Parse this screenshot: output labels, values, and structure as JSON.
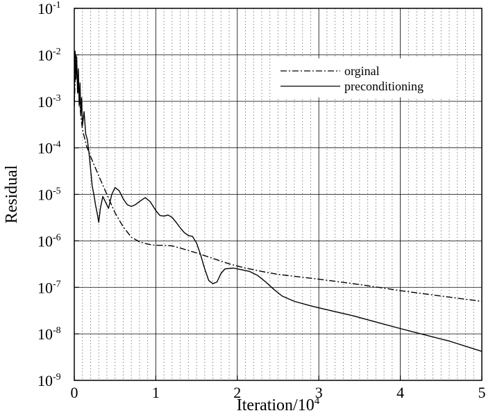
{
  "chart_data": {
    "type": "line",
    "xlabel": "Iteration/10",
    "xlabel_sup": "4",
    "ylabel": "Residual",
    "xlim": [
      0,
      5
    ],
    "ylim": [
      1e-09,
      0.1
    ],
    "y_scale": "log",
    "grid": true,
    "minor_x_grid": "dotted",
    "legend_position": "top-right",
    "x_ticks": [
      {
        "value": 0,
        "label": "0"
      },
      {
        "value": 1,
        "label": "1"
      },
      {
        "value": 2,
        "label": "2"
      },
      {
        "value": 3,
        "label": "3"
      },
      {
        "value": 4,
        "label": "4"
      },
      {
        "value": 5,
        "label": "5"
      }
    ],
    "y_ticks": [
      {
        "value": 0.1,
        "base": "10",
        "exp": "-1"
      },
      {
        "value": 0.01,
        "base": "10",
        "exp": "-2"
      },
      {
        "value": 0.001,
        "base": "10",
        "exp": "-3"
      },
      {
        "value": 0.0001,
        "base": "10",
        "exp": "-4"
      },
      {
        "value": 1e-05,
        "base": "10",
        "exp": "-5"
      },
      {
        "value": 1e-06,
        "base": "10",
        "exp": "-6"
      },
      {
        "value": 1e-07,
        "base": "10",
        "exp": "-7"
      },
      {
        "value": 1e-08,
        "base": "10",
        "exp": "-8"
      },
      {
        "value": 1e-09,
        "base": "10",
        "exp": "-9"
      }
    ],
    "series": [
      {
        "name": "orginal",
        "style": "dash-dot",
        "color": "#000000",
        "points": [
          [
            0,
            0.0008
          ],
          [
            0.02,
            0.01
          ],
          [
            0.04,
            0.003
          ],
          [
            0.06,
            0.0012
          ],
          [
            0.08,
            0.0005
          ],
          [
            0.1,
            0.00025
          ],
          [
            0.15,
            0.00011
          ],
          [
            0.2,
            6.5e-05
          ],
          [
            0.3,
            2.5e-05
          ],
          [
            0.4,
            1e-05
          ],
          [
            0.5,
            4e-06
          ],
          [
            0.6,
            2e-06
          ],
          [
            0.7,
            1.2e-06
          ],
          [
            0.8,
            9.5e-07
          ],
          [
            0.9,
            8.5e-07
          ],
          [
            1.0,
            8e-07
          ],
          [
            1.1,
            8e-07
          ],
          [
            1.2,
            7.8e-07
          ],
          [
            1.3,
            7e-07
          ],
          [
            1.4,
            6.2e-07
          ],
          [
            1.5,
            5.5e-07
          ],
          [
            1.7,
            4.2e-07
          ],
          [
            1.9,
            3.2e-07
          ],
          [
            2.1,
            2.6e-07
          ],
          [
            2.3,
            2.2e-07
          ],
          [
            2.5,
            1.9e-07
          ],
          [
            3.0,
            1.5e-07
          ],
          [
            3.5,
            1.15e-07
          ],
          [
            4.0,
            8.5e-08
          ],
          [
            4.5,
            6.5e-08
          ],
          [
            5.0,
            5e-08
          ]
        ]
      },
      {
        "name": "preconditioning",
        "style": "solid",
        "color": "#000000",
        "points": [
          [
            0,
            0.001
          ],
          [
            0.01,
            0.012
          ],
          [
            0.02,
            0.003
          ],
          [
            0.03,
            0.009
          ],
          [
            0.04,
            0.0015
          ],
          [
            0.05,
            0.005
          ],
          [
            0.06,
            0.0008
          ],
          [
            0.07,
            0.0025
          ],
          [
            0.08,
            0.0005
          ],
          [
            0.09,
            0.0012
          ],
          [
            0.1,
            0.0003
          ],
          [
            0.12,
            0.0006
          ],
          [
            0.14,
            0.0002
          ],
          [
            0.16,
            0.00015
          ],
          [
            0.18,
            8e-05
          ],
          [
            0.2,
            3.5e-05
          ],
          [
            0.22,
            1.5e-05
          ],
          [
            0.24,
            1e-05
          ],
          [
            0.26,
            6e-06
          ],
          [
            0.28,
            4e-06
          ],
          [
            0.3,
            2.5e-06
          ],
          [
            0.32,
            5e-06
          ],
          [
            0.35,
            9e-06
          ],
          [
            0.38,
            7e-06
          ],
          [
            0.42,
            5e-06
          ],
          [
            0.46,
            1e-05
          ],
          [
            0.5,
            1.4e-05
          ],
          [
            0.55,
            1.2e-05
          ],
          [
            0.6,
            8e-06
          ],
          [
            0.65,
            6e-06
          ],
          [
            0.7,
            5.5e-06
          ],
          [
            0.75,
            6e-06
          ],
          [
            0.8,
            7e-06
          ],
          [
            0.87,
            8.5e-06
          ],
          [
            0.93,
            7e-06
          ],
          [
            1.0,
            4.5e-06
          ],
          [
            1.05,
            3.5e-06
          ],
          [
            1.1,
            3.4e-06
          ],
          [
            1.15,
            3.6e-06
          ],
          [
            1.2,
            3.2e-06
          ],
          [
            1.25,
            2.5e-06
          ],
          [
            1.3,
            1.9e-06
          ],
          [
            1.35,
            1.5e-06
          ],
          [
            1.4,
            1.3e-06
          ],
          [
            1.45,
            1.25e-06
          ],
          [
            1.5,
            9e-07
          ],
          [
            1.55,
            5e-07
          ],
          [
            1.6,
            2.5e-07
          ],
          [
            1.65,
            1.4e-07
          ],
          [
            1.7,
            1.2e-07
          ],
          [
            1.75,
            1.3e-07
          ],
          [
            1.8,
            2e-07
          ],
          [
            1.85,
            2.5e-07
          ],
          [
            1.95,
            2.6e-07
          ],
          [
            2.05,
            2.4e-07
          ],
          [
            2.15,
            2.2e-07
          ],
          [
            2.25,
            1.8e-07
          ],
          [
            2.35,
            1.3e-07
          ],
          [
            2.45,
            9e-08
          ],
          [
            2.55,
            6.5e-08
          ],
          [
            2.7,
            5e-08
          ],
          [
            2.9,
            4e-08
          ],
          [
            3.1,
            3.3e-08
          ],
          [
            3.4,
            2.5e-08
          ],
          [
            3.7,
            1.8e-08
          ],
          [
            4.0,
            1.3e-08
          ],
          [
            4.3,
            9.5e-09
          ],
          [
            4.6,
            7e-09
          ],
          [
            5.0,
            4.2e-09
          ]
        ]
      }
    ]
  }
}
